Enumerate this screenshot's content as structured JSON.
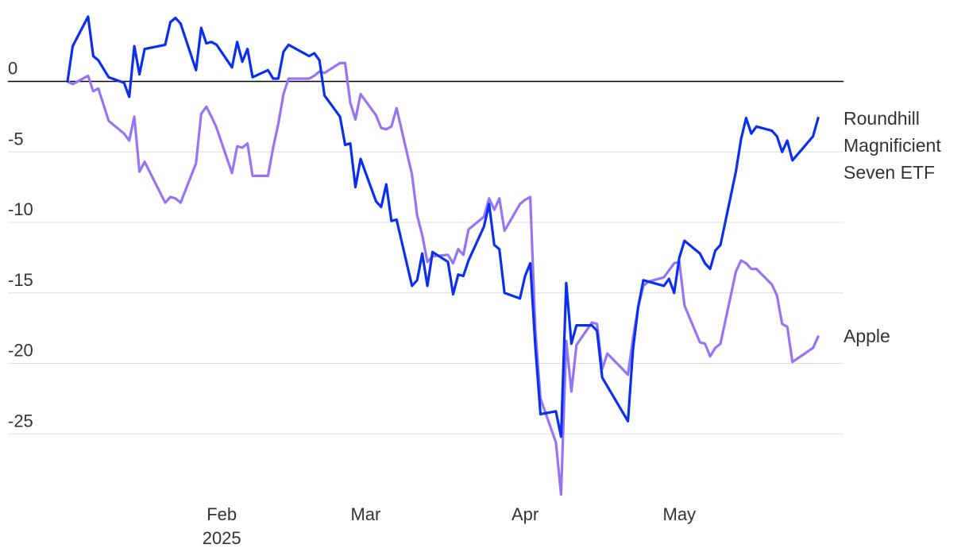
{
  "chart_data": {
    "type": "line",
    "title": "",
    "xlabel": "",
    "ylabel": "",
    "x_domain": [
      "2025-01-02",
      "2025-05-30"
    ],
    "ylim": [
      -29.5,
      4.5
    ],
    "y_ticks": [
      0,
      -5,
      -10,
      -15,
      -20,
      -25
    ],
    "y_tick_labels": [
      "0",
      "-5",
      "-10",
      "-15",
      "-20",
      "-25"
    ],
    "x_ticks": [
      {
        "date": "2025-02-01",
        "label": "Feb",
        "sublabel": "2025"
      },
      {
        "date": "2025-03-01",
        "label": "Mar",
        "sublabel": ""
      },
      {
        "date": "2025-04-01",
        "label": "Apr",
        "sublabel": ""
      },
      {
        "date": "2025-05-01",
        "label": "May",
        "sublabel": ""
      }
    ],
    "grid": true,
    "legend": "inline-right",
    "series": [
      {
        "name": "Roundhill Magnificient Seven ETF",
        "label_lines": [
          "Roundhill",
          "Magnificient",
          "Seven ETF"
        ],
        "color": "#0a2ff0",
        "points": [
          [
            "2025-01-02",
            0.0
          ],
          [
            "2025-01-03",
            2.5
          ],
          [
            "2025-01-06",
            4.6
          ],
          [
            "2025-01-07",
            1.8
          ],
          [
            "2025-01-08",
            1.5
          ],
          [
            "2025-01-10",
            0.3
          ],
          [
            "2025-01-13",
            -0.1
          ],
          [
            "2025-01-14",
            -1.1
          ],
          [
            "2025-01-15",
            2.5
          ],
          [
            "2025-01-16",
            0.5
          ],
          [
            "2025-01-17",
            2.3
          ],
          [
            "2025-01-21",
            2.6
          ],
          [
            "2025-01-22",
            4.2
          ],
          [
            "2025-01-23",
            4.5
          ],
          [
            "2025-01-24",
            4.1
          ],
          [
            "2025-01-27",
            0.8
          ],
          [
            "2025-01-28",
            3.8
          ],
          [
            "2025-01-29",
            2.7
          ],
          [
            "2025-01-30",
            2.8
          ],
          [
            "2025-01-31",
            2.6
          ],
          [
            "2025-02-03",
            1.0
          ],
          [
            "2025-02-04",
            2.8
          ],
          [
            "2025-02-05",
            1.4
          ],
          [
            "2025-02-06",
            2.3
          ],
          [
            "2025-02-07",
            0.3
          ],
          [
            "2025-02-10",
            0.8
          ],
          [
            "2025-02-11",
            0.2
          ],
          [
            "2025-02-12",
            0.2
          ],
          [
            "2025-02-13",
            2.1
          ],
          [
            "2025-02-14",
            2.6
          ],
          [
            "2025-02-18",
            1.8
          ],
          [
            "2025-02-19",
            2.0
          ],
          [
            "2025-02-20",
            1.5
          ],
          [
            "2025-02-21",
            -1.0
          ],
          [
            "2025-02-24",
            -2.5
          ],
          [
            "2025-02-25",
            -4.5
          ],
          [
            "2025-02-26",
            -4.4
          ],
          [
            "2025-02-27",
            -7.5
          ],
          [
            "2025-02-28",
            -5.5
          ],
          [
            "2025-03-03",
            -8.5
          ],
          [
            "2025-03-04",
            -8.9
          ],
          [
            "2025-03-05",
            -7.3
          ],
          [
            "2025-03-06",
            -9.9
          ],
          [
            "2025-03-07",
            -9.8
          ],
          [
            "2025-03-10",
            -14.5
          ],
          [
            "2025-03-11",
            -14.1
          ],
          [
            "2025-03-12",
            -12.2
          ],
          [
            "2025-03-13",
            -14.5
          ],
          [
            "2025-03-14",
            -12.1
          ],
          [
            "2025-03-17",
            -12.8
          ],
          [
            "2025-03-18",
            -15.1
          ],
          [
            "2025-03-19",
            -13.7
          ],
          [
            "2025-03-20",
            -13.8
          ],
          [
            "2025-03-21",
            -12.7
          ],
          [
            "2025-03-24",
            -10.3
          ],
          [
            "2025-03-25",
            -8.7
          ],
          [
            "2025-03-26",
            -11.6
          ],
          [
            "2025-03-27",
            -11.9
          ],
          [
            "2025-03-28",
            -15.0
          ],
          [
            "2025-03-31",
            -15.4
          ],
          [
            "2025-04-01",
            -13.8
          ],
          [
            "2025-04-02",
            -12.9
          ],
          [
            "2025-04-03",
            -18.8
          ],
          [
            "2025-04-04",
            -23.6
          ],
          [
            "2025-04-07",
            -23.4
          ],
          [
            "2025-04-08",
            -25.2
          ],
          [
            "2025-04-09",
            -14.3
          ],
          [
            "2025-04-10",
            -18.6
          ],
          [
            "2025-04-11",
            -17.3
          ],
          [
            "2025-04-14",
            -17.3
          ],
          [
            "2025-04-15",
            -17.7
          ],
          [
            "2025-04-16",
            -21.0
          ],
          [
            "2025-04-21",
            -24.1
          ],
          [
            "2025-04-22",
            -19.0
          ],
          [
            "2025-04-23",
            -16.0
          ],
          [
            "2025-04-24",
            -14.1
          ],
          [
            "2025-04-25",
            -14.2
          ],
          [
            "2025-04-28",
            -14.5
          ],
          [
            "2025-04-29",
            -14.0
          ],
          [
            "2025-04-30",
            -15.0
          ],
          [
            "2025-05-01",
            -12.5
          ],
          [
            "2025-05-02",
            -11.3
          ],
          [
            "2025-05-05",
            -12.2
          ],
          [
            "2025-05-06",
            -12.9
          ],
          [
            "2025-05-07",
            -13.3
          ],
          [
            "2025-05-08",
            -12.0
          ],
          [
            "2025-05-09",
            -11.6
          ],
          [
            "2025-05-12",
            -6.4
          ],
          [
            "2025-05-13",
            -4.1
          ],
          [
            "2025-05-14",
            -2.6
          ],
          [
            "2025-05-15",
            -3.7
          ],
          [
            "2025-05-16",
            -3.2
          ],
          [
            "2025-05-19",
            -3.5
          ],
          [
            "2025-05-20",
            -3.9
          ],
          [
            "2025-05-21",
            -5.0
          ],
          [
            "2025-05-22",
            -4.2
          ],
          [
            "2025-05-23",
            -5.6
          ],
          [
            "2025-05-27",
            -3.9
          ],
          [
            "2025-05-28",
            -2.6
          ]
        ]
      },
      {
        "name": "Apple",
        "label_lines": [
          "Apple"
        ],
        "color": "#9476f5",
        "points": [
          [
            "2025-01-02",
            0.0
          ],
          [
            "2025-01-03",
            -0.2
          ],
          [
            "2025-01-06",
            0.4
          ],
          [
            "2025-01-07",
            -0.7
          ],
          [
            "2025-01-08",
            -0.5
          ],
          [
            "2025-01-10",
            -2.8
          ],
          [
            "2025-01-13",
            -3.7
          ],
          [
            "2025-01-14",
            -4.2
          ],
          [
            "2025-01-15",
            -2.5
          ],
          [
            "2025-01-16",
            -6.4
          ],
          [
            "2025-01-17",
            -5.7
          ],
          [
            "2025-01-21",
            -8.6
          ],
          [
            "2025-01-22",
            -8.2
          ],
          [
            "2025-01-23",
            -8.3
          ],
          [
            "2025-01-24",
            -8.6
          ],
          [
            "2025-01-27",
            -5.8
          ],
          [
            "2025-01-28",
            -2.3
          ],
          [
            "2025-01-29",
            -1.8
          ],
          [
            "2025-01-30",
            -2.5
          ],
          [
            "2025-01-31",
            -3.3
          ],
          [
            "2025-02-03",
            -6.5
          ],
          [
            "2025-02-04",
            -4.6
          ],
          [
            "2025-02-05",
            -4.7
          ],
          [
            "2025-02-06",
            -4.4
          ],
          [
            "2025-02-07",
            -6.7
          ],
          [
            "2025-02-10",
            -6.7
          ],
          [
            "2025-02-11",
            -4.7
          ],
          [
            "2025-02-12",
            -3.0
          ],
          [
            "2025-02-13",
            -0.9
          ],
          [
            "2025-02-14",
            0.2
          ],
          [
            "2025-02-18",
            0.2
          ],
          [
            "2025-02-19",
            0.4
          ],
          [
            "2025-02-20",
            0.7
          ],
          [
            "2025-02-21",
            0.6
          ],
          [
            "2025-02-24",
            1.3
          ],
          [
            "2025-02-25",
            1.3
          ],
          [
            "2025-02-26",
            -1.5
          ],
          [
            "2025-02-27",
            -2.7
          ],
          [
            "2025-02-28",
            -0.9
          ],
          [
            "2025-03-03",
            -2.4
          ],
          [
            "2025-03-04",
            -3.3
          ],
          [
            "2025-03-05",
            -3.4
          ],
          [
            "2025-03-06",
            -3.2
          ],
          [
            "2025-03-07",
            -1.9
          ],
          [
            "2025-03-10",
            -6.6
          ],
          [
            "2025-03-11",
            -9.5
          ],
          [
            "2025-03-12",
            -10.9
          ],
          [
            "2025-03-13",
            -12.8
          ],
          [
            "2025-03-14",
            -12.4
          ],
          [
            "2025-03-17",
            -12.3
          ],
          [
            "2025-03-18",
            -12.9
          ],
          [
            "2025-03-19",
            -11.9
          ],
          [
            "2025-03-20",
            -12.3
          ],
          [
            "2025-03-21",
            -10.5
          ],
          [
            "2025-03-24",
            -9.6
          ],
          [
            "2025-03-25",
            -8.3
          ],
          [
            "2025-03-26",
            -9.1
          ],
          [
            "2025-03-27",
            -8.3
          ],
          [
            "2025-03-28",
            -10.6
          ],
          [
            "2025-03-31",
            -8.7
          ],
          [
            "2025-04-01",
            -8.4
          ],
          [
            "2025-04-02",
            -8.2
          ],
          [
            "2025-04-03",
            -17.6
          ],
          [
            "2025-04-04",
            -22.5
          ],
          [
            "2025-04-07",
            -25.6
          ],
          [
            "2025-04-08",
            -29.3
          ],
          [
            "2025-04-09",
            -18.4
          ],
          [
            "2025-04-10",
            -22.0
          ],
          [
            "2025-04-11",
            -18.7
          ],
          [
            "2025-04-14",
            -17.1
          ],
          [
            "2025-04-15",
            -17.2
          ],
          [
            "2025-04-16",
            -20.4
          ],
          [
            "2025-04-17",
            -19.3
          ],
          [
            "2025-04-21",
            -20.8
          ],
          [
            "2025-04-22",
            -18.2
          ],
          [
            "2025-04-23",
            -16.0
          ],
          [
            "2025-04-24",
            -14.5
          ],
          [
            "2025-04-25",
            -14.2
          ],
          [
            "2025-04-28",
            -13.9
          ],
          [
            "2025-04-29",
            -13.4
          ],
          [
            "2025-04-30",
            -12.9
          ],
          [
            "2025-05-01",
            -12.8
          ],
          [
            "2025-05-02",
            -15.9
          ],
          [
            "2025-05-05",
            -18.5
          ],
          [
            "2025-05-06",
            -18.6
          ],
          [
            "2025-05-07",
            -19.5
          ],
          [
            "2025-05-08",
            -18.9
          ],
          [
            "2025-05-09",
            -18.6
          ],
          [
            "2025-05-12",
            -13.5
          ],
          [
            "2025-05-13",
            -12.7
          ],
          [
            "2025-05-14",
            -12.9
          ],
          [
            "2025-05-15",
            -13.3
          ],
          [
            "2025-05-16",
            -13.3
          ],
          [
            "2025-05-19",
            -14.4
          ],
          [
            "2025-05-20",
            -15.2
          ],
          [
            "2025-05-21",
            -17.2
          ],
          [
            "2025-05-22",
            -17.4
          ],
          [
            "2025-05-23",
            -19.9
          ],
          [
            "2025-05-27",
            -18.9
          ],
          [
            "2025-05-28",
            -18.1
          ]
        ]
      }
    ]
  }
}
